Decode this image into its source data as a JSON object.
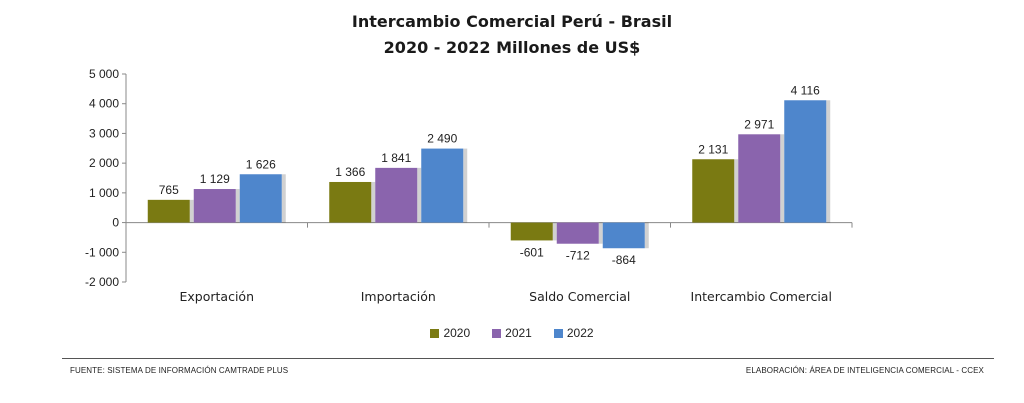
{
  "chart_data": {
    "type": "bar",
    "title_line1": "Intercambio Comercial Perú - Brasil",
    "title_line2": "2020 - 2022  Millones de US$",
    "categories": [
      "Exportación",
      "Importación",
      "Saldo Comercial",
      "Intercambio Comercial"
    ],
    "series": [
      {
        "name": "2020",
        "color": "#7a7a12",
        "values": [
          765,
          1366,
          -601,
          2131
        ],
        "labels": [
          "765",
          "1 366",
          "-601",
          "2 131"
        ]
      },
      {
        "name": "2021",
        "color": "#8a64ad",
        "values": [
          1129,
          1841,
          -712,
          2971
        ],
        "labels": [
          "1 129",
          "1 841",
          "-712",
          "2 971"
        ]
      },
      {
        "name": "2022",
        "color": "#4e86cc",
        "values": [
          1626,
          2490,
          -864,
          4116
        ],
        "labels": [
          "1 626",
          "2 490",
          "-864",
          "4 116"
        ]
      }
    ],
    "ylim": [
      -2000,
      5000
    ],
    "yticks": [
      5000,
      4000,
      3000,
      2000,
      1000,
      0,
      -1000,
      -2000
    ],
    "ytick_labels": [
      "5 000",
      "4 000",
      "3 000",
      "2 000",
      "1 000",
      "0",
      "-1 000",
      "-2 000"
    ],
    "legend_position": "bottom"
  },
  "footer": {
    "source": "FUENTE: SISTEMA  DE INFORMACIÓN CAMTRADE PLUS",
    "elaboration": "ELABORACIÓN: ÁREA DE INTELIGENCIA COMERCIAL - CCEX"
  }
}
